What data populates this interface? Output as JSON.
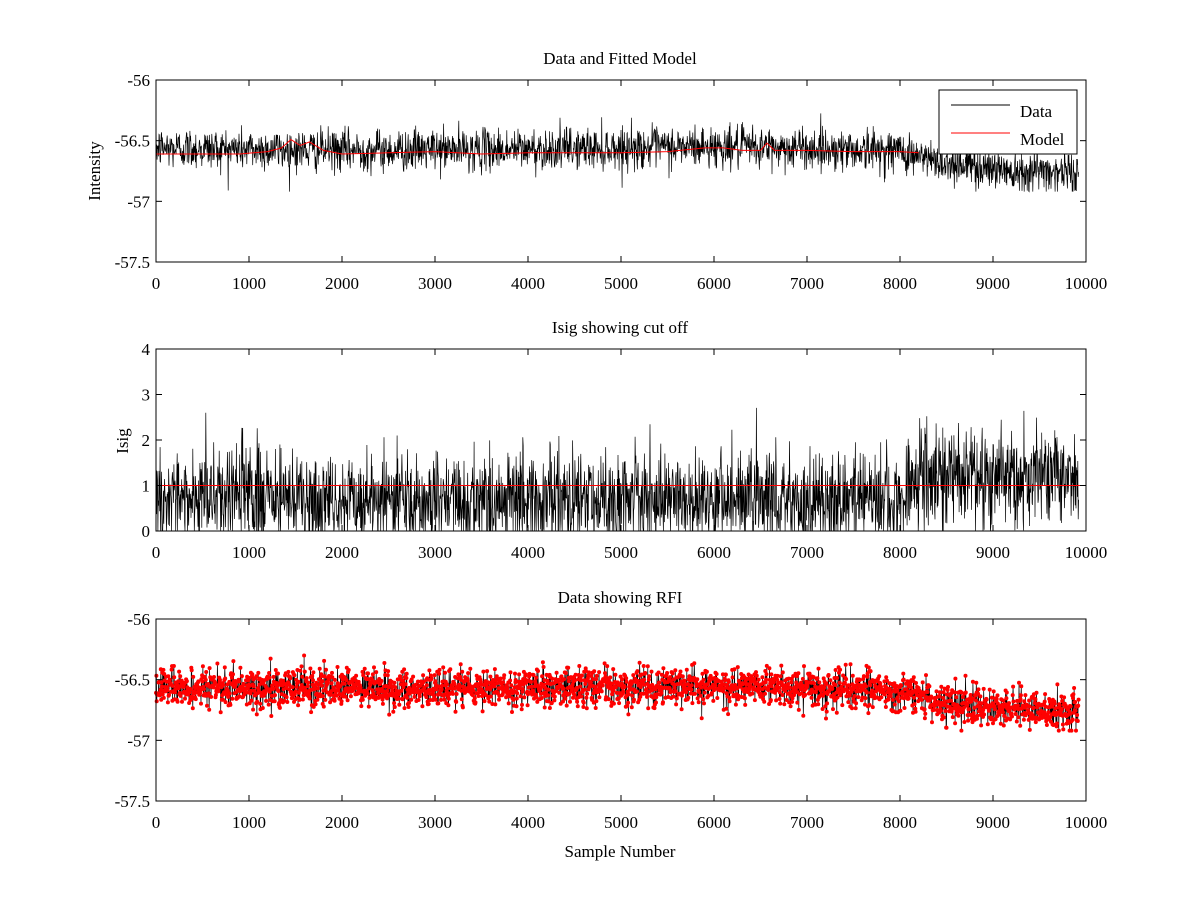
{
  "chart_data": [
    {
      "type": "line",
      "title": "Data and Fitted Model",
      "xlabel": "",
      "ylabel": "Intensity",
      "xlim": [
        0,
        10000
      ],
      "ylim": [
        -57.5,
        -56
      ],
      "xticks": [
        0,
        1000,
        2000,
        3000,
        4000,
        5000,
        6000,
        7000,
        8000,
        9000,
        10000
      ],
      "yticks": [
        -56,
        -56.5,
        -57,
        -57.5
      ],
      "ytick_labels": [
        "-56",
        "-56.5",
        "-57",
        "-57.5"
      ],
      "legend": {
        "placement": "top-right",
        "entries": [
          "Data",
          "Model"
        ]
      },
      "series": [
        {
          "name": "Data",
          "color": "#000000",
          "style": "noisy-line",
          "x_end": 9920,
          "baseline": [
            [
              0,
              -56.56
            ],
            [
              2000,
              -56.58
            ],
            [
              4000,
              -56.57
            ],
            [
              6000,
              -56.55
            ],
            [
              8000,
              -56.58
            ],
            [
              8300,
              -56.66
            ],
            [
              9000,
              -56.73
            ],
            [
              9920,
              -56.76
            ]
          ],
          "noise_sd": 0.085,
          "min": -56.92,
          "max": -56.26
        },
        {
          "name": "Model",
          "color": "#ff0000",
          "style": "line",
          "x": [
            0,
            300,
            600,
            900,
            1200,
            1350,
            1450,
            1550,
            1650,
            1800,
            2000,
            2500,
            3000,
            3500,
            4000,
            4500,
            5000,
            5500,
            5900,
            6100,
            6300,
            6500,
            6570,
            6650,
            7000,
            7500,
            8000,
            8200
          ],
          "y": [
            -56.61,
            -56.61,
            -56.61,
            -56.61,
            -56.59,
            -56.56,
            -56.49,
            -56.54,
            -56.51,
            -56.58,
            -56.61,
            -56.6,
            -56.59,
            -56.61,
            -56.6,
            -56.6,
            -56.6,
            -56.59,
            -56.56,
            -56.56,
            -56.58,
            -56.58,
            -56.52,
            -56.58,
            -56.58,
            -56.59,
            -56.59,
            -56.6
          ]
        }
      ]
    },
    {
      "type": "line",
      "title": "Isig showing cut off",
      "xlabel": "",
      "ylabel": "Isig",
      "xlim": [
        0,
        10000
      ],
      "ylim": [
        0,
        4
      ],
      "xticks": [
        0,
        1000,
        2000,
        3000,
        4000,
        5000,
        6000,
        7000,
        8000,
        9000,
        10000
      ],
      "yticks": [
        0,
        1,
        2,
        3,
        4
      ],
      "series": [
        {
          "color": "#000000",
          "style": "noisy-line",
          "x_end": 9920,
          "baseline": [
            [
              0,
              0.7
            ],
            [
              8000,
              0.7
            ],
            [
              8200,
              1.15
            ],
            [
              9920,
              1.25
            ]
          ],
          "noise_sd": 0.55,
          "min": 0,
          "max": 3.8
        },
        {
          "color": "#ff0000",
          "style": "line",
          "x": [
            0,
            10000
          ],
          "y": [
            1,
            1
          ]
        }
      ]
    },
    {
      "type": "scatter",
      "title": "Data showing RFI",
      "xlabel": "Sample Number",
      "ylabel": "",
      "xlim": [
        0,
        10000
      ],
      "ylim": [
        -57.5,
        -56
      ],
      "xticks": [
        0,
        1000,
        2000,
        3000,
        4000,
        5000,
        6000,
        7000,
        8000,
        9000,
        10000
      ],
      "yticks": [
        -56,
        -56.5,
        -57,
        -57.5
      ],
      "ytick_labels": [
        "-56",
        "-56.5",
        "-57",
        "-57.5"
      ],
      "series": [
        {
          "color": "#000000",
          "style": "noisy-line",
          "x_end": 9920,
          "baseline": [
            [
              0,
              -56.56
            ],
            [
              2000,
              -56.58
            ],
            [
              4000,
              -56.57
            ],
            [
              6000,
              -56.55
            ],
            [
              8000,
              -56.58
            ],
            [
              8300,
              -56.66
            ],
            [
              9000,
              -56.73
            ],
            [
              9920,
              -56.76
            ]
          ],
          "noise_sd": 0.08,
          "min": -56.92,
          "max": -56.24
        },
        {
          "color": "#ff0000",
          "style": "markers",
          "marker": "dot",
          "x_end": 9920,
          "baseline": [
            [
              0,
              -56.56
            ],
            [
              2000,
              -56.58
            ],
            [
              4000,
              -56.57
            ],
            [
              6000,
              -56.55
            ],
            [
              8000,
              -56.58
            ],
            [
              8300,
              -56.66
            ],
            [
              9000,
              -56.73
            ],
            [
              9920,
              -56.76
            ]
          ],
          "noise_sd": 0.08,
          "min": -56.92,
          "max": -56.24
        }
      ]
    }
  ]
}
